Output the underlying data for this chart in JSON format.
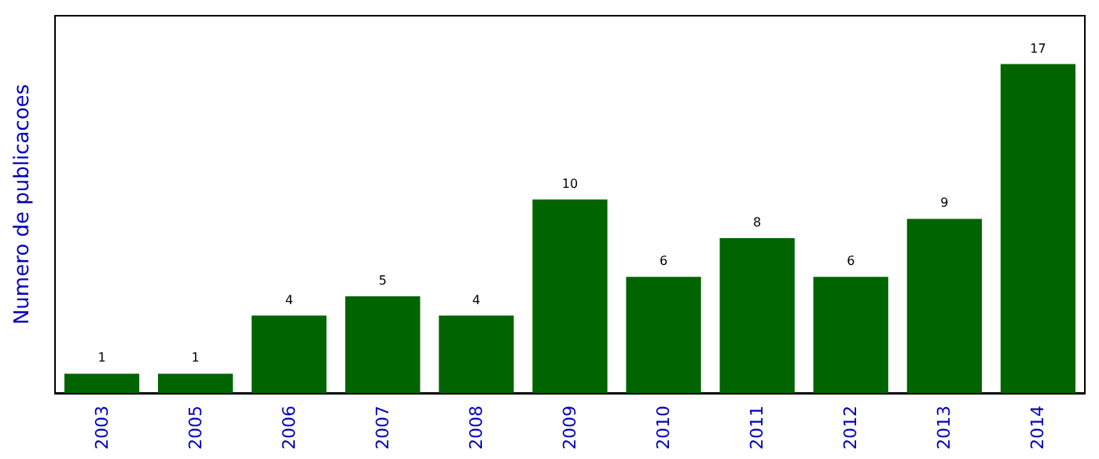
{
  "chart_data": {
    "type": "bar",
    "ylabel": "Numero de publicacoes",
    "categories": [
      "2003",
      "2005",
      "2006",
      "2007",
      "2008",
      "2009",
      "2010",
      "2011",
      "2012",
      "2013",
      "2014"
    ],
    "values": [
      1,
      1,
      4,
      5,
      4,
      10,
      6,
      8,
      6,
      9,
      17
    ],
    "color": "#006400",
    "data_labels": true,
    "ylim": [
      0,
      19.5
    ],
    "tick_labels": "x"
  }
}
